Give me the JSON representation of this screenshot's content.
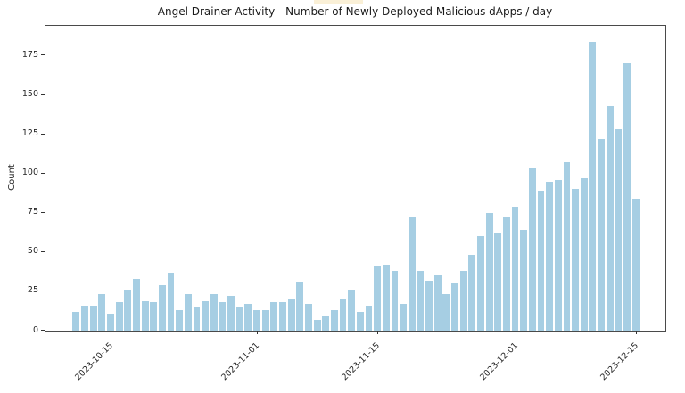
{
  "artifact": {
    "color": "#faf0d7"
  },
  "chart_data": {
    "type": "bar",
    "title": "Angel Drainer Activity - Number of Newly Deployed Malicious dApps / day",
    "xlabel": "",
    "ylabel": "Count",
    "bar_color": "#a6cee3",
    "grid": false,
    "legend": null,
    "n_bars": 66,
    "date_range": [
      "2023-10-11",
      "2023-12-15"
    ],
    "values": [
      12,
      16,
      16,
      23,
      11,
      18,
      26,
      33,
      19,
      18,
      29,
      37,
      13,
      23,
      15,
      19,
      23,
      18,
      22,
      15,
      17,
      13,
      13,
      18,
      18,
      20,
      31,
      17,
      7,
      9,
      13,
      20,
      26,
      12,
      16,
      41,
      42,
      38,
      17,
      72,
      38,
      32,
      35,
      23,
      30,
      38,
      48,
      60,
      75,
      62,
      72,
      79,
      64,
      104,
      89,
      95,
      96,
      107,
      90,
      97,
      184,
      122,
      143,
      128,
      170,
      84
    ],
    "x_tick_labels": [
      "2023-10-15",
      "2023-11-01",
      "2023-11-15",
      "2023-12-01",
      "2023-12-15"
    ],
    "x_tick_bar_index": [
      4,
      21,
      35,
      51,
      65
    ],
    "y_ticks": [
      0,
      25,
      50,
      75,
      100,
      125,
      150,
      175
    ],
    "y_tick_labels": [
      "0",
      "25",
      "50",
      "75",
      "100",
      "125",
      "150",
      "175"
    ],
    "ylim": [
      0,
      194
    ]
  }
}
